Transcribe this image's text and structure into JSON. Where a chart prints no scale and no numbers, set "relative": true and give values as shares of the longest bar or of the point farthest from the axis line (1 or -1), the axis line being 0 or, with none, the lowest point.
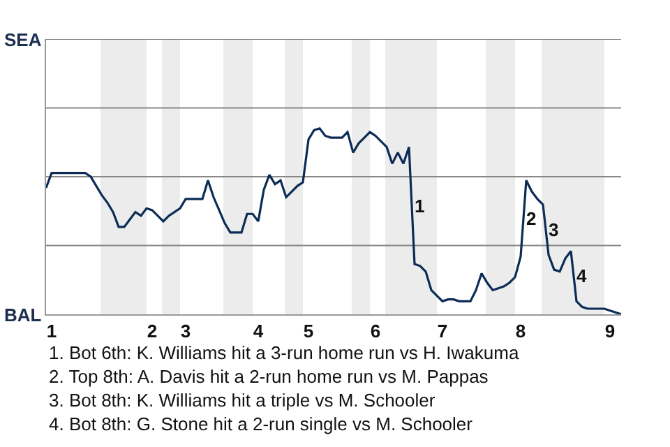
{
  "chart_data": {
    "type": "line",
    "relative": true,
    "categories": [
      null,
      "1",
      null,
      null,
      null,
      null,
      null,
      null,
      null,
      null,
      null,
      null,
      null,
      null,
      null,
      null,
      null,
      null,
      null,
      "2",
      null,
      null,
      null,
      null,
      null,
      "3",
      null,
      null,
      null,
      null,
      null,
      null,
      null,
      null,
      null,
      null,
      null,
      null,
      "4",
      null,
      null,
      null,
      null,
      null,
      null,
      null,
      null,
      "5",
      null,
      null,
      null,
      null,
      null,
      null,
      null,
      null,
      null,
      null,
      null,
      "6",
      null,
      null,
      null,
      null,
      null,
      null,
      null,
      null,
      null,
      null,
      null,
      "7",
      null,
      null,
      null,
      null,
      null,
      null,
      null,
      null,
      null,
      null,
      null,
      null,
      null,
      "8",
      null,
      null,
      null,
      null,
      null,
      null,
      null,
      null,
      null,
      null,
      null,
      null,
      null,
      null,
      null,
      "9",
      null,
      null
    ],
    "series": [
      {
        "color": "#0c2c56",
        "values": [
          0.68,
          0.76,
          0.76,
          0.76,
          0.76,
          0.76,
          0.76,
          0.76,
          0.74,
          0.69,
          0.64,
          0.6,
          0.55,
          0.47,
          0.47,
          0.51,
          0.55,
          0.53,
          0.57,
          0.56,
          0.53,
          0.5,
          0.53,
          0.55,
          0.57,
          0.62,
          0.62,
          0.62,
          0.62,
          0.72,
          0.63,
          0.56,
          0.49,
          0.44,
          0.44,
          0.44,
          0.54,
          0.54,
          0.5,
          0.67,
          0.75,
          0.7,
          0.72,
          0.63,
          0.66,
          0.69,
          0.71,
          0.94,
          0.99,
          1,
          0.96,
          0.95,
          0.95,
          0.95,
          0.98,
          0.87,
          0.92,
          0.95,
          0.98,
          0.96,
          0.93,
          0.9,
          0.81,
          0.87,
          0.81,
          0.9,
          0.27,
          0.26,
          0.23,
          0.13,
          0.1,
          0.07,
          0.08,
          0.08,
          0.07,
          0.07,
          0.07,
          0.13,
          0.22,
          0.17,
          0.13,
          0.14,
          0.15,
          0.17,
          0.2,
          0.31,
          0.72,
          0.66,
          0.62,
          0.59,
          0.32,
          0.24,
          0.23,
          0.3,
          0.34,
          0.07,
          0.04,
          0.03,
          0.03,
          0.03,
          0.03,
          0.02,
          0.01,
          0
        ]
      }
    ],
    "ref_lines": [
      {
        "axis": "y",
        "value": 0.37,
        "color": "#888888"
      },
      {
        "axis": "y",
        "value": 0.74,
        "color": "#888888"
      },
      {
        "axis": "y",
        "value": 1.11,
        "color": "#888888"
      },
      {
        "axis": "y",
        "value": 1.48,
        "color": "#888888"
      }
    ],
    "marker": "none",
    "line_style": "solid",
    "annotations": [
      "SEA",
      "BAL",
      "1",
      "2",
      "3",
      "4",
      "1. Bot 6th: K. Williams hit a 3-run home run vs H. Iwakuma",
      "2. Top 8th: A. Davis hit a 2-run home run vs M. Pappas",
      "3. Bot 8th: K. Williams hit a triple vs M. Schooler",
      "4. Bot 8th: G. Stone hit a 2-run single vs M. Schooler"
    ]
  }
}
